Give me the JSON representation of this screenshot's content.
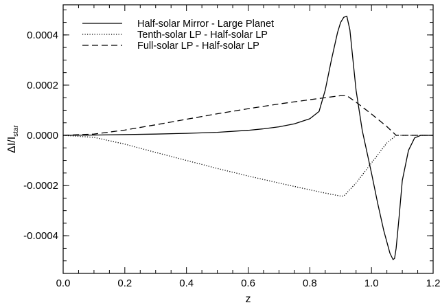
{
  "chart_data": {
    "type": "line",
    "title": "",
    "xlabel": "z",
    "ylabel": {
      "main": "ΔI/I",
      "subscript": "star"
    },
    "xlim": [
      0.0,
      1.2
    ],
    "ylim": [
      -0.00055,
      0.00052
    ],
    "x_ticks": [
      {
        "value": 0.0,
        "label": "0.0"
      },
      {
        "value": 0.2,
        "label": "0.2"
      },
      {
        "value": 0.4,
        "label": "0.4"
      },
      {
        "value": 0.6,
        "label": "0.6"
      },
      {
        "value": 0.8,
        "label": "0.8"
      },
      {
        "value": 1.0,
        "label": "1.0"
      },
      {
        "value": 1.2,
        "label": "1.2"
      }
    ],
    "y_ticks": [
      {
        "value": 0.0004,
        "label": "0.0004"
      },
      {
        "value": 0.0002,
        "label": "0.0002"
      },
      {
        "value": 0.0,
        "label": "0.0000"
      },
      {
        "value": -0.0002,
        "label": "-0.0002"
      },
      {
        "value": -0.0004,
        "label": "-0.0004"
      }
    ],
    "grid": false,
    "legend_position": "top-left",
    "series": [
      {
        "name": "Half-solar Mirror - Large Planet",
        "style": "solid",
        "x": [
          0.0,
          0.1,
          0.2,
          0.3,
          0.4,
          0.5,
          0.6,
          0.65,
          0.7,
          0.75,
          0.8,
          0.83,
          0.85,
          0.87,
          0.89,
          0.9,
          0.91,
          0.92,
          0.93,
          0.94,
          0.95,
          0.97,
          1.0,
          1.02,
          1.04,
          1.06,
          1.07,
          1.075,
          1.08,
          1.09,
          1.1,
          1.12,
          1.14,
          1.16,
          1.2
        ],
        "y": [
          0.0,
          1e-06,
          3e-06,
          5e-06,
          8e-06,
          1.2e-05,
          2e-05,
          2.6e-05,
          3.4e-05,
          4.6e-05,
          6.6e-05,
          9.5e-05,
          0.00018,
          0.0003,
          0.00041,
          0.00045,
          0.00047,
          0.000475,
          0.00042,
          0.0003,
          0.00018,
          2e-05,
          -0.00015,
          -0.00027,
          -0.00038,
          -0.00047,
          -0.000495,
          -0.00049,
          -0.00045,
          -0.00032,
          -0.00018,
          -6e-05,
          -1e-05,
          0.0,
          0.0
        ]
      },
      {
        "name": "Tenth-solar LP - Half-solar LP",
        "style": "dotted",
        "x": [
          0.0,
          0.1,
          0.2,
          0.3,
          0.4,
          0.5,
          0.6,
          0.7,
          0.8,
          0.85,
          0.9,
          0.91,
          0.95,
          1.0,
          1.05,
          1.08,
          1.1,
          1.2
        ],
        "y": [
          0.0,
          -8e-06,
          -3.5e-05,
          -6.8e-05,
          -0.0001,
          -0.000132,
          -0.000162,
          -0.00019,
          -0.000217,
          -0.00023,
          -0.000242,
          -0.000242,
          -0.00019,
          -0.00011,
          -3e-05,
          0.0,
          0.0,
          0.0
        ]
      },
      {
        "name": "Full-solar LP - Half-solar LP",
        "style": "dashed",
        "x": [
          0.0,
          0.1,
          0.2,
          0.3,
          0.4,
          0.5,
          0.6,
          0.7,
          0.8,
          0.85,
          0.9,
          0.92,
          0.95,
          1.0,
          1.05,
          1.08,
          1.1,
          1.2
        ],
        "y": [
          0.0,
          5e-06,
          2.1e-05,
          4.2e-05,
          6.4e-05,
          8.6e-05,
          0.000106,
          0.000125,
          0.000142,
          0.00015,
          0.000158,
          0.000158,
          0.000132,
          8.5e-05,
          3.5e-05,
          0.0,
          0.0,
          0.0
        ]
      }
    ]
  }
}
